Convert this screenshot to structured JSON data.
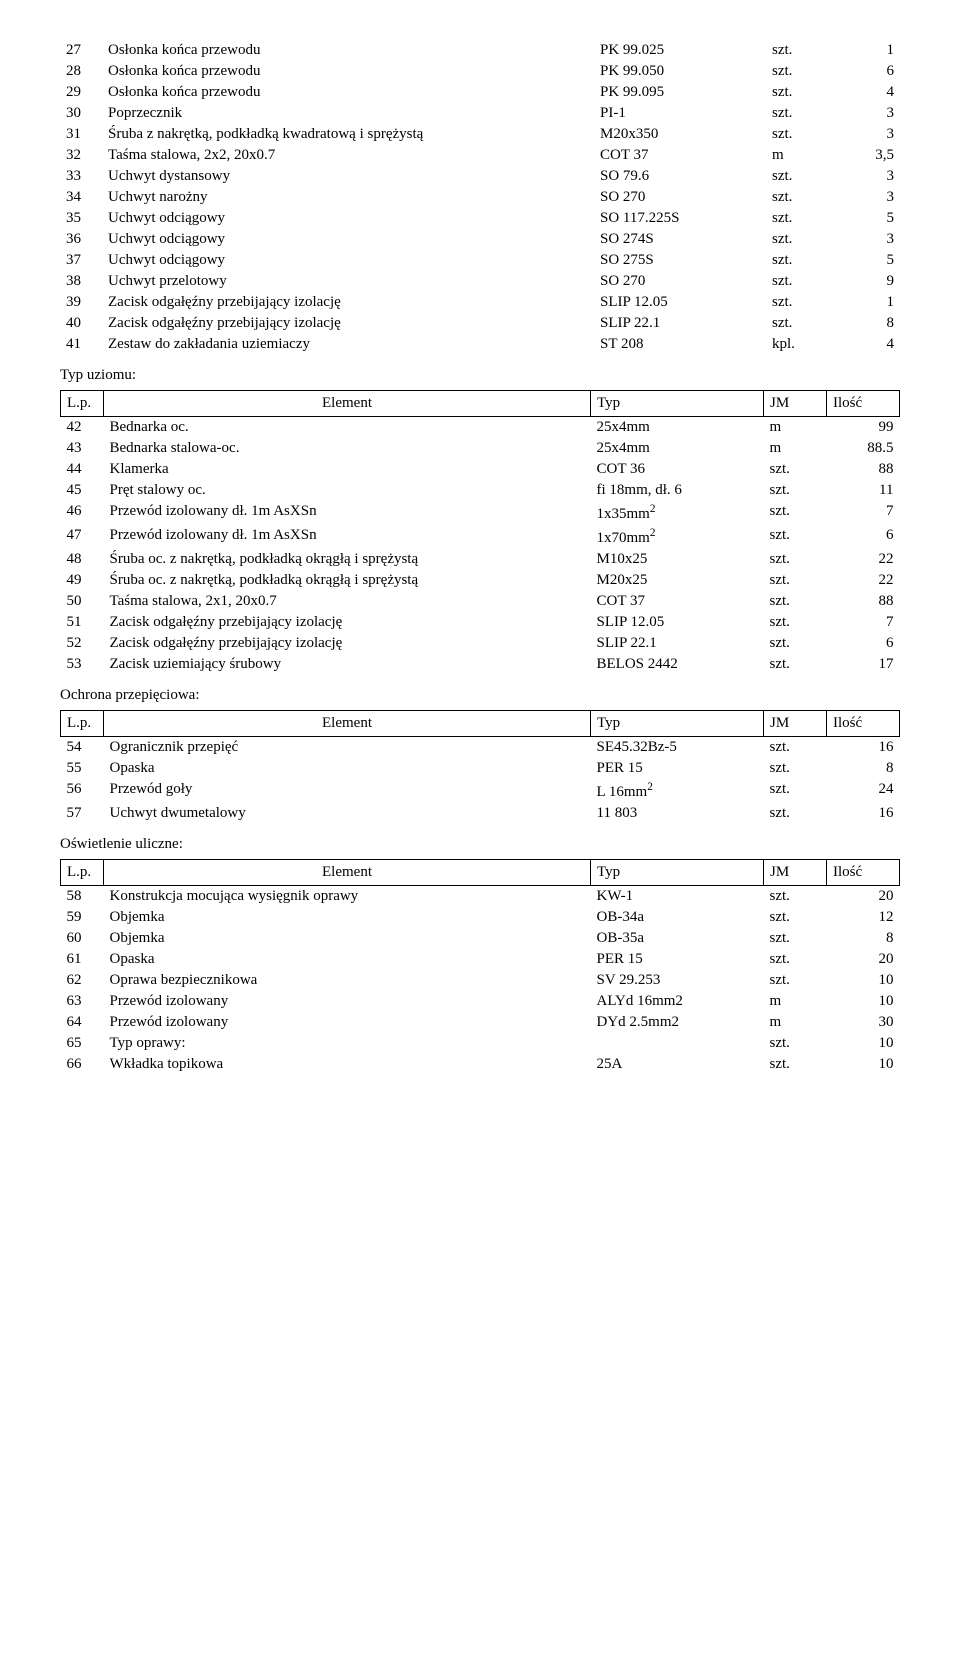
{
  "headers": {
    "lp": "L.p.",
    "element": "Element",
    "typ": "Typ",
    "jm": "JM",
    "ilosc": "Ilość"
  },
  "sections": {
    "top": {
      "rows": [
        {
          "n": "27",
          "el": "Osłonka końca przewodu",
          "typ": "PK 99.025",
          "jm": "szt.",
          "il": "1"
        },
        {
          "n": "28",
          "el": "Osłonka końca przewodu",
          "typ": "PK 99.050",
          "jm": "szt.",
          "il": "6"
        },
        {
          "n": "29",
          "el": "Osłonka końca przewodu",
          "typ": "PK 99.095",
          "jm": "szt.",
          "il": "4"
        },
        {
          "n": "30",
          "el": "Poprzecznik",
          "typ": "PI-1",
          "jm": "szt.",
          "il": "3"
        },
        {
          "n": "31",
          "el": "Śruba z nakrętką, podkładką kwadratową i sprężystą",
          "typ": "M20x350",
          "jm": "szt.",
          "il": "3"
        },
        {
          "n": "32",
          "el": "Taśma stalowa, 2x2, 20x0.7",
          "typ": "COT 37",
          "jm": "m",
          "il": "3,5"
        },
        {
          "n": "33",
          "el": "Uchwyt dystansowy",
          "typ": "SO 79.6",
          "jm": "szt.",
          "il": "3"
        },
        {
          "n": "34",
          "el": "Uchwyt narożny",
          "typ": "SO 270",
          "jm": "szt.",
          "il": "3"
        },
        {
          "n": "35",
          "el": "Uchwyt odciągowy",
          "typ": "SO 117.225S",
          "jm": "szt.",
          "il": "5"
        },
        {
          "n": "36",
          "el": "Uchwyt odciągowy",
          "typ": "SO 274S",
          "jm": "szt.",
          "il": "3"
        },
        {
          "n": "37",
          "el": "Uchwyt odciągowy",
          "typ": "SO 275S",
          "jm": "szt.",
          "il": "5"
        },
        {
          "n": "38",
          "el": "Uchwyt przelotowy",
          "typ": "SO 270",
          "jm": "szt.",
          "il": "9"
        },
        {
          "n": "39",
          "el": "Zacisk odgałęźny przebijający izolację",
          "typ": "SLIP 12.05",
          "jm": "szt.",
          "il": "1"
        },
        {
          "n": "40",
          "el": "Zacisk odgałęźny przebijający izolację",
          "typ": "SLIP 22.1",
          "jm": "szt.",
          "il": "8"
        },
        {
          "n": "41",
          "el": "Zestaw do zakładania uziemiaczy",
          "typ": "ST 208",
          "jm": "kpl.",
          "il": "4"
        }
      ]
    },
    "uziom": {
      "title": "Typ uziomu:",
      "rows": [
        {
          "n": "42",
          "el": "Bednarka oc.",
          "typ": "25x4mm",
          "jm": "m",
          "il": "99"
        },
        {
          "n": "43",
          "el": "Bednarka stalowa-oc.",
          "typ": "25x4mm",
          "jm": "m",
          "il": "88.5"
        },
        {
          "n": "44",
          "el": "Klamerka",
          "typ": "COT 36",
          "jm": "szt.",
          "il": "88"
        },
        {
          "n": "45",
          "el": "Pręt stalowy oc.",
          "typ": "fi 18mm, dł. 6",
          "jm": "szt.",
          "il": "11"
        },
        {
          "n": "46",
          "el": "Przewód izolowany dł. 1m AsXSn",
          "typ": "1x35mm",
          "typ_sup": "2",
          "jm": "szt.",
          "il": "7"
        },
        {
          "n": "47",
          "el": "Przewód izolowany dł. 1m AsXSn",
          "typ": "1x70mm",
          "typ_sup": "2",
          "jm": "szt.",
          "il": "6"
        },
        {
          "n": "48",
          "el": "Śruba oc. z nakrętką, podkładką okrągłą i sprężystą",
          "typ": "M10x25",
          "jm": "szt.",
          "il": "22"
        },
        {
          "n": "49",
          "el": "Śruba oc. z nakrętką, podkładką okrągłą i sprężystą",
          "typ": "M20x25",
          "jm": "szt.",
          "il": "22"
        },
        {
          "n": "50",
          "el": "Taśma stalowa, 2x1, 20x0.7",
          "typ": "COT 37",
          "jm": "szt.",
          "il": "88"
        },
        {
          "n": "51",
          "el": "Zacisk odgałęźny przebijający izolację",
          "typ": "SLIP 12.05",
          "jm": "szt.",
          "il": "7"
        },
        {
          "n": "52",
          "el": "Zacisk odgałęźny przebijający izolację",
          "typ": "SLIP 22.1",
          "jm": "szt.",
          "il": "6"
        },
        {
          "n": "53",
          "el": "Zacisk uziemiający śrubowy",
          "typ": "BELOS 2442",
          "jm": "szt.",
          "il": "17"
        }
      ]
    },
    "ochrona": {
      "title": "Ochrona przepięciowa:",
      "rows": [
        {
          "n": "54",
          "el": "Ogranicznik przepięć",
          "typ": "SE45.32Bz-5",
          "jm": "szt.",
          "il": "16"
        },
        {
          "n": "55",
          "el": "Opaska",
          "typ": "PER 15",
          "jm": "szt.",
          "il": "8"
        },
        {
          "n": "56",
          "el": "Przewód goły",
          "typ": "L 16mm",
          "typ_sup": "2",
          "jm": "szt.",
          "il": "24"
        },
        {
          "n": "57",
          "el": "Uchwyt dwumetalowy",
          "typ": "11 803",
          "jm": "szt.",
          "il": "16"
        }
      ]
    },
    "oswietlenie": {
      "title": "Oświetlenie uliczne:",
      "rows": [
        {
          "n": "58",
          "el": "Konstrukcja mocująca wysięgnik oprawy",
          "typ": "KW-1",
          "jm": "szt.",
          "il": "20"
        },
        {
          "n": "59",
          "el": "Objemka",
          "typ": "OB-34a",
          "jm": "szt.",
          "il": "12"
        },
        {
          "n": "60",
          "el": "Objemka",
          "typ": "OB-35a",
          "jm": "szt.",
          "il": "8"
        },
        {
          "n": "61",
          "el": "Opaska",
          "typ": "PER 15",
          "jm": "szt.",
          "il": "20"
        },
        {
          "n": "62",
          "el": "Oprawa bezpiecznikowa",
          "typ": "SV 29.253",
          "jm": "szt.",
          "il": "10"
        },
        {
          "n": "63",
          "el": "Przewód izolowany",
          "typ": "ALYd 16mm2",
          "jm": "m",
          "il": "10"
        },
        {
          "n": "64",
          "el": "Przewód izolowany",
          "typ": "DYd 2.5mm2",
          "jm": "m",
          "il": "30"
        },
        {
          "n": "65",
          "el": "Typ oprawy:",
          "typ": "",
          "jm": "szt.",
          "il": "10"
        },
        {
          "n": "66",
          "el": "Wkładka topikowa",
          "typ": "25A",
          "jm": "szt.",
          "il": "10"
        }
      ]
    }
  }
}
